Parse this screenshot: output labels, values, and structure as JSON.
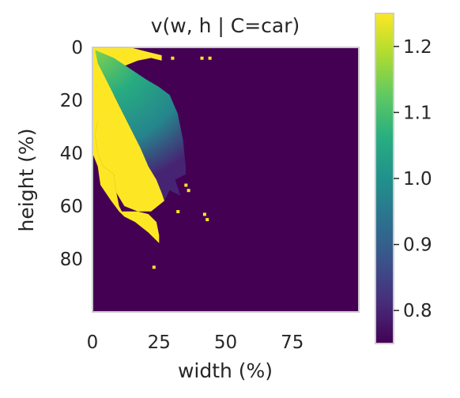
{
  "chart_data": {
    "type": "heatmap",
    "title": "v(w, h | C=car)",
    "xlabel": "width (%)",
    "ylabel": "height (%)",
    "xlim": [
      0,
      100
    ],
    "ylim": [
      100,
      0
    ],
    "xticks": [
      0,
      25,
      50,
      75
    ],
    "yticks": [
      0,
      20,
      40,
      60,
      80
    ],
    "grid": false,
    "colormap": "viridis",
    "colorbar": {
      "vmin": 0.75,
      "vmax": 1.25,
      "ticks": [
        0.8,
        0.9,
        1.0,
        1.1,
        1.2
      ],
      "tick_labels": [
        "0.8",
        "0.9",
        "1.0",
        "1.1",
        "1.2"
      ]
    },
    "background_value": 0.75,
    "regions": [
      {
        "name": "saturated-upper-left",
        "value": 1.25,
        "polygon": [
          [
            0,
            0
          ],
          [
            8,
            0
          ],
          [
            14,
            0
          ],
          [
            18,
            1
          ],
          [
            22,
            2
          ],
          [
            26,
            3
          ],
          [
            26,
            5
          ],
          [
            22,
            4
          ],
          [
            17,
            5
          ],
          [
            12,
            7
          ],
          [
            11,
            12
          ],
          [
            8,
            18
          ],
          [
            2,
            28
          ],
          [
            1,
            33
          ],
          [
            2,
            40
          ],
          [
            4,
            45
          ],
          [
            8,
            48
          ],
          [
            9,
            55
          ],
          [
            10,
            60
          ],
          [
            11,
            62
          ],
          [
            17,
            62
          ],
          [
            21,
            63
          ],
          [
            24,
            66
          ],
          [
            25,
            71
          ],
          [
            25,
            74
          ],
          [
            21,
            70
          ],
          [
            16,
            66
          ],
          [
            12,
            64
          ],
          [
            10,
            62
          ],
          [
            7,
            58
          ],
          [
            3,
            52
          ],
          [
            2,
            45
          ],
          [
            0,
            40
          ]
        ]
      },
      {
        "name": "saturated-wedge-lower",
        "value": 1.25,
        "polygon": [
          [
            2,
            6
          ],
          [
            6,
            14
          ],
          [
            10,
            22
          ],
          [
            14,
            30
          ],
          [
            18,
            38
          ],
          [
            21,
            45
          ],
          [
            24,
            50
          ],
          [
            26,
            55
          ],
          [
            27,
            58
          ],
          [
            22,
            62
          ],
          [
            17,
            62
          ],
          [
            12,
            60
          ],
          [
            9,
            55
          ],
          [
            8,
            48
          ],
          [
            4,
            45
          ],
          [
            2,
            40
          ],
          [
            1,
            33
          ],
          [
            2,
            28
          ],
          [
            3,
            20
          ]
        ]
      },
      {
        "name": "gradient-wedge",
        "gradient": true,
        "apex": [
          1,
          1
        ],
        "polygon": [
          [
            1,
            1
          ],
          [
            8,
            4
          ],
          [
            14,
            8
          ],
          [
            20,
            12
          ],
          [
            25,
            15
          ],
          [
            29,
            18
          ],
          [
            32,
            25
          ],
          [
            34,
            35
          ],
          [
            35,
            45
          ],
          [
            35,
            48
          ],
          [
            31,
            50
          ],
          [
            33,
            56
          ],
          [
            29,
            54
          ],
          [
            27,
            58
          ],
          [
            26,
            55
          ],
          [
            24,
            50
          ],
          [
            21,
            45
          ],
          [
            18,
            38
          ],
          [
            14,
            30
          ],
          [
            10,
            22
          ],
          [
            6,
            14
          ],
          [
            2,
            6
          ]
        ],
        "inner_value": 0.8,
        "outer_value": 1.15
      }
    ],
    "specks": [
      {
        "x": 30,
        "y": 4,
        "value": 1.25
      },
      {
        "x": 41,
        "y": 4,
        "value": 1.25
      },
      {
        "x": 44,
        "y": 4,
        "value": 1.25
      },
      {
        "x": 35,
        "y": 52,
        "value": 1.25
      },
      {
        "x": 36,
        "y": 54,
        "value": 1.25
      },
      {
        "x": 32,
        "y": 62,
        "value": 1.25
      },
      {
        "x": 42,
        "y": 63,
        "value": 1.25
      },
      {
        "x": 43,
        "y": 65,
        "value": 1.25
      },
      {
        "x": 23,
        "y": 83,
        "value": 1.25
      }
    ]
  }
}
